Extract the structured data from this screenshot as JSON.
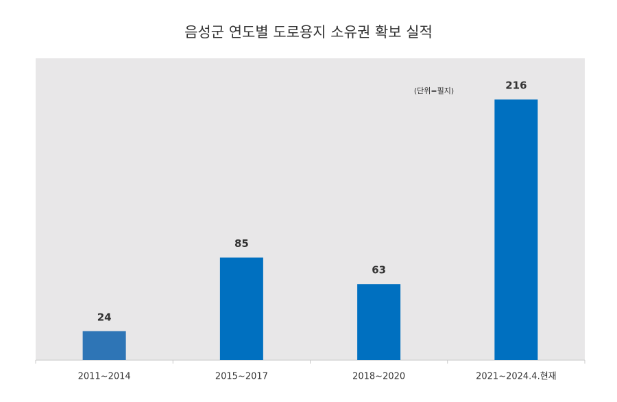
{
  "chart_data": {
    "type": "bar",
    "title": "음성군 연도별 도로용지 소유권 확보 실적",
    "annotation": "(단위=필지)",
    "categories": [
      "2011~2014",
      "2015~2017",
      "2018~2020",
      "2021~2024.4.현재"
    ],
    "values": [
      24,
      85,
      63,
      216
    ],
    "colors": [
      "#2e75b6",
      "#0070c0",
      "#0070c0",
      "#0070c0"
    ]
  }
}
